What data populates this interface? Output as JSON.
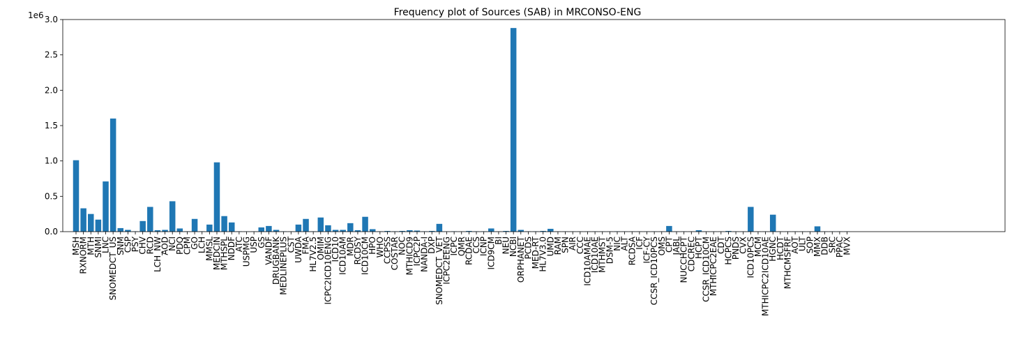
{
  "chart_data": {
    "type": "bar",
    "title": "Frequency plot of Sources (SAB) in MRCONSO-ENG",
    "xlabel": "",
    "ylabel": "",
    "scale_label": "1e6",
    "ylim": [
      0,
      3.0
    ],
    "yticks": [
      0.0,
      0.5,
      1.0,
      1.5,
      2.0,
      2.5,
      3.0
    ],
    "ytick_labels": [
      "0.0",
      "0.5",
      "1.0",
      "1.5",
      "2.0",
      "2.5",
      "3.0"
    ],
    "bar_color": "#1f77b4",
    "grid": false,
    "categories": [
      "MSH",
      "RXNORM",
      "MTH",
      "SNMI",
      "LNC",
      "SNOMEDCT_US",
      "SNM",
      "CSP",
      "PSY",
      "CHV",
      "RCD",
      "LCH_NW",
      "AOD",
      "NCI",
      "PDQ",
      "CPM",
      "GO",
      "LCH",
      "MMSL",
      "MEDCIN",
      "MTHSPL",
      "NDDF",
      "ATC",
      "USPMG",
      "USP",
      "GS",
      "VANDF",
      "DRUGBANK",
      "MEDLINEPLUS",
      "CST",
      "UWDA",
      "FMA",
      "HL7V2.5",
      "OMIM",
      "ICPC2ICD10ENG",
      "ICD10",
      "ICD10AM",
      "MDR",
      "RCDSY",
      "ICD10CM",
      "HPO",
      "WHO",
      "CCPSS",
      "COSTAR",
      "NOC",
      "MTHICD9",
      "ICPC2P",
      "NANDA-I",
      "DXP",
      "SNOMEDCT_VET",
      "ICPC2EENG",
      "ICPC",
      "QMR",
      "RCDAE",
      "CCS",
      "ICNP",
      "ICD9CM",
      "BI",
      "NEU",
      "NCBI",
      "ORPHANET",
      "PCDS",
      "MED-RT",
      "HL7V3.0",
      "UMD",
      "RAM",
      "SPN",
      "AIR",
      "CCC",
      "ICD10AMAE",
      "ICD10AE",
      "MTHMST",
      "DSM-5",
      "NIC",
      "ALT",
      "RCDSA",
      "ICF",
      "ICF-CY",
      "CCSR_ICD10PCS",
      "OMS",
      "CPT",
      "JABL",
      "NUCCHCPT",
      "CDCREC",
      "HCPT",
      "CCSR_ICD10CM",
      "MTHICPC2EAE",
      "CDT",
      "HCPCS",
      "PNDS",
      "CVX",
      "ICD10PCS",
      "MCM",
      "MTHICPC2ICD10AE",
      "HGNC",
      "HCDT",
      "MTHCMSFRF",
      "AOT",
      "ULT",
      "SOP",
      "MMX",
      "DDB",
      "SRC",
      "PPAC",
      "MVX"
    ],
    "values": [
      1.01,
      0.33,
      0.25,
      0.17,
      0.71,
      1.6,
      0.05,
      0.025,
      0.005,
      0.15,
      0.35,
      0.02,
      0.025,
      0.43,
      0.045,
      0.005,
      0.18,
      0.005,
      0.1,
      0.98,
      0.22,
      0.13,
      0.005,
      0.003,
      0.003,
      0.06,
      0.08,
      0.025,
      0.005,
      0.003,
      0.1,
      0.18,
      0.005,
      0.2,
      0.09,
      0.025,
      0.025,
      0.12,
      0.02,
      0.21,
      0.035,
      0.005,
      0.01,
      0.005,
      0.01,
      0.02,
      0.015,
      0.005,
      0.01,
      0.11,
      0.003,
      0.005,
      0.003,
      0.01,
      0.005,
      0.005,
      0.045,
      0.003,
      0.01,
      2.88,
      0.025,
      0.005,
      0.005,
      0.01,
      0.04,
      0.003,
      0.003,
      0.003,
      0.003,
      0.003,
      0.003,
      0.003,
      0.003,
      0.005,
      0.003,
      0.003,
      0.003,
      0.003,
      0.003,
      0.003,
      0.08,
      0.003,
      0.003,
      0.003,
      0.02,
      0.003,
      0.003,
      0.003,
      0.01,
      0.003,
      0.003,
      0.35,
      0.003,
      0.003,
      0.24,
      0.003,
      0.003,
      0.003,
      0.003,
      0.003,
      0.075,
      0.003,
      0.003,
      0.003,
      0.003
    ]
  }
}
